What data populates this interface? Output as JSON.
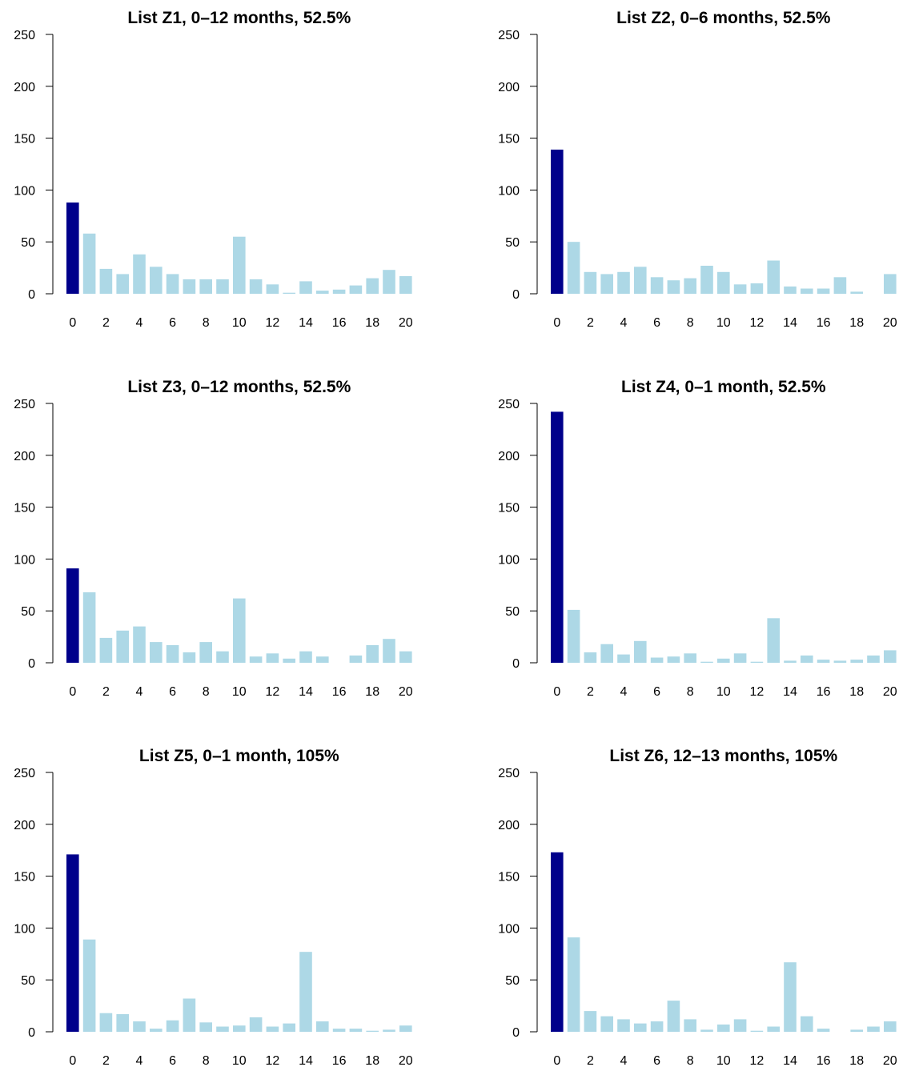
{
  "colors": {
    "highlight": "#00008b",
    "bar": "#add8e6",
    "axis": "#000000"
  },
  "chart_data": [
    {
      "type": "bar",
      "title": "List Z1, 0–12 months, 52.5%",
      "x": [
        0,
        1,
        2,
        3,
        4,
        5,
        6,
        7,
        8,
        9,
        10,
        11,
        12,
        13,
        14,
        15,
        16,
        17,
        18,
        19,
        20
      ],
      "values": [
        88,
        58,
        24,
        19,
        38,
        26,
        19,
        14,
        14,
        14,
        55,
        14,
        9,
        1,
        12,
        3,
        4,
        8,
        15,
        23,
        17
      ],
      "highlight_index": 0,
      "ylim": [
        0,
        250
      ],
      "yticks": [
        0,
        50,
        100,
        150,
        200,
        250
      ],
      "xticks": [
        0,
        2,
        4,
        6,
        8,
        10,
        12,
        14,
        16,
        18,
        20
      ],
      "xlabel": "",
      "ylabel": "",
      "grid": false,
      "legend": "none"
    },
    {
      "type": "bar",
      "title": "List Z2, 0–6 months, 52.5%",
      "x": [
        0,
        1,
        2,
        3,
        4,
        5,
        6,
        7,
        8,
        9,
        10,
        11,
        12,
        13,
        14,
        15,
        16,
        17,
        18,
        19,
        20
      ],
      "values": [
        139,
        50,
        21,
        19,
        21,
        26,
        16,
        13,
        15,
        27,
        21,
        9,
        10,
        32,
        7,
        5,
        5,
        16,
        2,
        0,
        19
      ],
      "highlight_index": 0,
      "ylim": [
        0,
        250
      ],
      "yticks": [
        0,
        50,
        100,
        150,
        200,
        250
      ],
      "xticks": [
        0,
        2,
        4,
        6,
        8,
        10,
        12,
        14,
        16,
        18,
        20
      ],
      "xlabel": "",
      "ylabel": "",
      "grid": false,
      "legend": "none"
    },
    {
      "type": "bar",
      "title": "List Z3, 0–12 months, 52.5%",
      "x": [
        0,
        1,
        2,
        3,
        4,
        5,
        6,
        7,
        8,
        9,
        10,
        11,
        12,
        13,
        14,
        15,
        16,
        17,
        18,
        19,
        20
      ],
      "values": [
        91,
        68,
        24,
        31,
        35,
        20,
        17,
        10,
        20,
        11,
        62,
        6,
        9,
        4,
        11,
        6,
        0,
        7,
        17,
        23,
        11
      ],
      "highlight_index": 0,
      "ylim": [
        0,
        250
      ],
      "yticks": [
        0,
        50,
        100,
        150,
        200,
        250
      ],
      "xticks": [
        0,
        2,
        4,
        6,
        8,
        10,
        12,
        14,
        16,
        18,
        20
      ],
      "xlabel": "",
      "ylabel": "",
      "grid": false,
      "legend": "none"
    },
    {
      "type": "bar",
      "title": "List Z4, 0–1 month, 52.5%",
      "x": [
        0,
        1,
        2,
        3,
        4,
        5,
        6,
        7,
        8,
        9,
        10,
        11,
        12,
        13,
        14,
        15,
        16,
        17,
        18,
        19,
        20
      ],
      "values": [
        242,
        51,
        10,
        18,
        8,
        21,
        5,
        6,
        9,
        1,
        4,
        9,
        1,
        43,
        2,
        7,
        3,
        2,
        3,
        7,
        12
      ],
      "highlight_index": 0,
      "ylim": [
        0,
        250
      ],
      "yticks": [
        0,
        50,
        100,
        150,
        200,
        250
      ],
      "xticks": [
        0,
        2,
        4,
        6,
        8,
        10,
        12,
        14,
        16,
        18,
        20
      ],
      "xlabel": "",
      "ylabel": "",
      "grid": false,
      "legend": "none"
    },
    {
      "type": "bar",
      "title": "List Z5, 0–1 month, 105%",
      "x": [
        0,
        1,
        2,
        3,
        4,
        5,
        6,
        7,
        8,
        9,
        10,
        11,
        12,
        13,
        14,
        15,
        16,
        17,
        18,
        19,
        20
      ],
      "values": [
        171,
        89,
        18,
        17,
        10,
        3,
        11,
        32,
        9,
        5,
        6,
        14,
        5,
        8,
        77,
        10,
        3,
        3,
        1,
        2,
        6
      ],
      "highlight_index": 0,
      "ylim": [
        0,
        250
      ],
      "yticks": [
        0,
        50,
        100,
        150,
        200,
        250
      ],
      "xticks": [
        0,
        2,
        4,
        6,
        8,
        10,
        12,
        14,
        16,
        18,
        20
      ],
      "xlabel": "",
      "ylabel": "",
      "grid": false,
      "legend": "none"
    },
    {
      "type": "bar",
      "title": "List Z6, 12–13 months, 105%",
      "x": [
        0,
        1,
        2,
        3,
        4,
        5,
        6,
        7,
        8,
        9,
        10,
        11,
        12,
        13,
        14,
        15,
        16,
        17,
        18,
        19,
        20
      ],
      "values": [
        173,
        91,
        20,
        15,
        12,
        8,
        10,
        30,
        12,
        2,
        7,
        12,
        1,
        5,
        67,
        15,
        3,
        0,
        2,
        5,
        10
      ],
      "highlight_index": 0,
      "ylim": [
        0,
        250
      ],
      "yticks": [
        0,
        50,
        100,
        150,
        200,
        250
      ],
      "xticks": [
        0,
        2,
        4,
        6,
        8,
        10,
        12,
        14,
        16,
        18,
        20
      ],
      "xlabel": "",
      "ylabel": "",
      "grid": false,
      "legend": "none"
    }
  ]
}
